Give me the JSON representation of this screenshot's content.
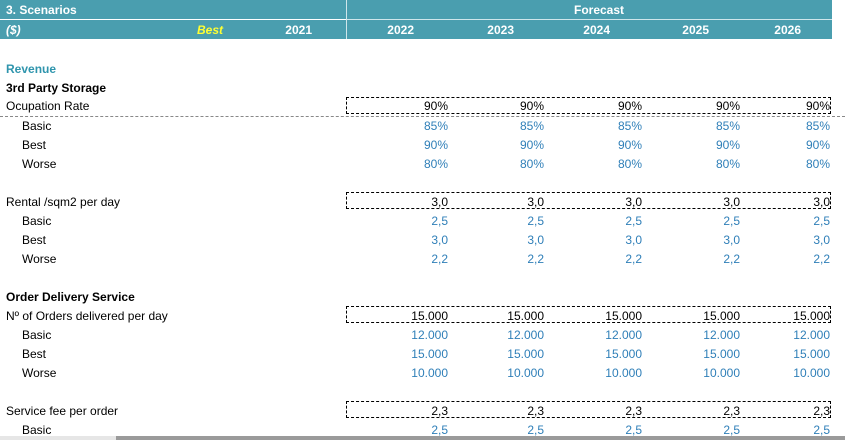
{
  "header": {
    "title": "3. Scenarios",
    "unit": "($)",
    "scenario": "Best",
    "forecast_label": "Forecast",
    "years": [
      "2021",
      "2022",
      "2023",
      "2024",
      "2025",
      "2026"
    ]
  },
  "sections": {
    "revenue": "Revenue",
    "storage": "3rd Party Storage",
    "delivery": "Order Delivery Service"
  },
  "rows": [
    {
      "label": "Ocupation Rate",
      "values": [
        "90%",
        "90%",
        "90%",
        "90%",
        "90%"
      ]
    },
    {
      "label": "Basic",
      "values": [
        "85%",
        "85%",
        "85%",
        "85%",
        "85%"
      ]
    },
    {
      "label": "Best",
      "values": [
        "90%",
        "90%",
        "90%",
        "90%",
        "90%"
      ]
    },
    {
      "label": "Worse",
      "values": [
        "80%",
        "80%",
        "80%",
        "80%",
        "80%"
      ]
    },
    {
      "label": "Rental /sqm2 per day",
      "values": [
        "3,0",
        "3,0",
        "3,0",
        "3,0",
        "3,0"
      ]
    },
    {
      "label": "Basic",
      "values": [
        "2,5",
        "2,5",
        "2,5",
        "2,5",
        "2,5"
      ]
    },
    {
      "label": "Best",
      "values": [
        "3,0",
        "3,0",
        "3,0",
        "3,0",
        "3,0"
      ]
    },
    {
      "label": "Worse",
      "values": [
        "2,2",
        "2,2",
        "2,2",
        "2,2",
        "2,2"
      ]
    },
    {
      "label": "Nº of Orders delivered per day",
      "values": [
        "15.000",
        "15.000",
        "15.000",
        "15.000",
        "15.000"
      ]
    },
    {
      "label": "Basic",
      "values": [
        "12.000",
        "12.000",
        "12.000",
        "12.000",
        "12.000"
      ]
    },
    {
      "label": "Best",
      "values": [
        "15.000",
        "15.000",
        "15.000",
        "15.000",
        "15.000"
      ]
    },
    {
      "label": "Worse",
      "values": [
        "10.000",
        "10.000",
        "10.000",
        "10.000",
        "10.000"
      ]
    },
    {
      "label": "Service fee per order",
      "values": [
        "2,3",
        "2,3",
        "2,3",
        "2,3",
        "2,3"
      ]
    },
    {
      "label": "Basic",
      "values": [
        "2,5",
        "2,5",
        "2,5",
        "2,5",
        "2,5"
      ]
    }
  ]
}
